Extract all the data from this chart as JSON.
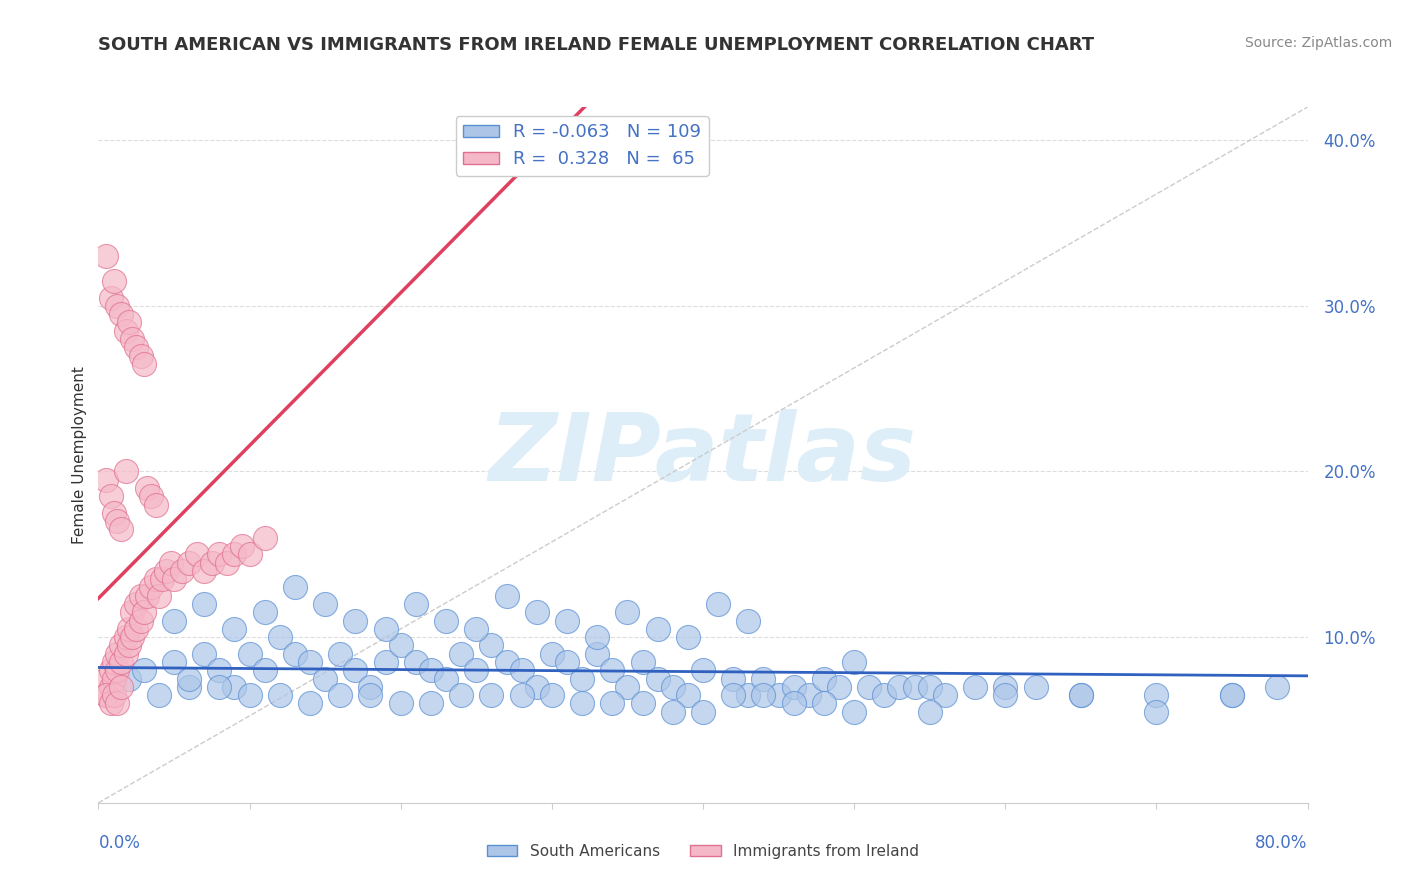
{
  "title": "SOUTH AMERICAN VS IMMIGRANTS FROM IRELAND FEMALE UNEMPLOYMENT CORRELATION CHART",
  "source": "Source: ZipAtlas.com",
  "ylabel": "Female Unemployment",
  "xmin": 0.0,
  "xmax": 0.8,
  "ymin": 0.0,
  "ymax": 0.42,
  "yticks": [
    0.1,
    0.2,
    0.3,
    0.4
  ],
  "ytick_labels": [
    "10.0%",
    "20.0%",
    "30.0%",
    "40.0%"
  ],
  "blue_R": -0.063,
  "blue_N": 109,
  "pink_R": 0.328,
  "pink_N": 65,
  "blue_color": "#adc6e8",
  "pink_color": "#f5b8c8",
  "blue_edge_color": "#5b8fd4",
  "pink_edge_color": "#e07090",
  "blue_line_color": "#3060c0",
  "pink_line_color": "#e04060",
  "diag_color": "#cccccc",
  "background_color": "#ffffff",
  "grid_color": "#dddddd",
  "title_color": "#333333",
  "axis_label_color": "#4472c4",
  "tick_label_color": "#4472c4",
  "source_color": "#888888",
  "watermark": "ZIPatlas",
  "watermark_color": "#ddeef8",
  "blue_scatter_x": [
    0.02,
    0.03,
    0.04,
    0.05,
    0.06,
    0.07,
    0.08,
    0.09,
    0.1,
    0.11,
    0.12,
    0.13,
    0.14,
    0.15,
    0.16,
    0.17,
    0.18,
    0.19,
    0.2,
    0.21,
    0.22,
    0.23,
    0.24,
    0.25,
    0.26,
    0.27,
    0.28,
    0.29,
    0.3,
    0.31,
    0.32,
    0.33,
    0.34,
    0.35,
    0.36,
    0.37,
    0.38,
    0.39,
    0.4,
    0.42,
    0.43,
    0.44,
    0.45,
    0.46,
    0.47,
    0.48,
    0.49,
    0.5,
    0.51,
    0.52,
    0.53,
    0.54,
    0.55,
    0.56,
    0.58,
    0.6,
    0.62,
    0.65,
    0.7,
    0.75,
    0.05,
    0.07,
    0.09,
    0.11,
    0.13,
    0.15,
    0.17,
    0.19,
    0.21,
    0.23,
    0.25,
    0.27,
    0.29,
    0.31,
    0.33,
    0.35,
    0.37,
    0.39,
    0.41,
    0.43,
    0.06,
    0.08,
    0.1,
    0.12,
    0.14,
    0.16,
    0.18,
    0.2,
    0.22,
    0.24,
    0.26,
    0.28,
    0.3,
    0.32,
    0.34,
    0.36,
    0.38,
    0.4,
    0.42,
    0.44,
    0.46,
    0.48,
    0.5,
    0.55,
    0.6,
    0.65,
    0.7,
    0.75,
    0.78
  ],
  "blue_scatter_y": [
    0.075,
    0.08,
    0.065,
    0.085,
    0.07,
    0.09,
    0.08,
    0.07,
    0.09,
    0.08,
    0.1,
    0.09,
    0.085,
    0.075,
    0.09,
    0.08,
    0.07,
    0.085,
    0.095,
    0.085,
    0.08,
    0.075,
    0.09,
    0.08,
    0.095,
    0.085,
    0.08,
    0.07,
    0.09,
    0.085,
    0.075,
    0.09,
    0.08,
    0.07,
    0.085,
    0.075,
    0.07,
    0.065,
    0.08,
    0.075,
    0.065,
    0.075,
    0.065,
    0.07,
    0.065,
    0.075,
    0.07,
    0.085,
    0.07,
    0.065,
    0.07,
    0.07,
    0.07,
    0.065,
    0.07,
    0.07,
    0.07,
    0.065,
    0.065,
    0.065,
    0.11,
    0.12,
    0.105,
    0.115,
    0.13,
    0.12,
    0.11,
    0.105,
    0.12,
    0.11,
    0.105,
    0.125,
    0.115,
    0.11,
    0.1,
    0.115,
    0.105,
    0.1,
    0.12,
    0.11,
    0.075,
    0.07,
    0.065,
    0.065,
    0.06,
    0.065,
    0.065,
    0.06,
    0.06,
    0.065,
    0.065,
    0.065,
    0.065,
    0.06,
    0.06,
    0.06,
    0.055,
    0.055,
    0.065,
    0.065,
    0.06,
    0.06,
    0.055,
    0.055,
    0.065,
    0.065,
    0.055,
    0.065,
    0.07
  ],
  "pink_scatter_x": [
    0.005,
    0.005,
    0.008,
    0.008,
    0.01,
    0.01,
    0.012,
    0.012,
    0.015,
    0.015,
    0.018,
    0.018,
    0.02,
    0.02,
    0.022,
    0.022,
    0.025,
    0.025,
    0.028,
    0.028,
    0.03,
    0.032,
    0.035,
    0.038,
    0.04,
    0.042,
    0.045,
    0.048,
    0.05,
    0.055,
    0.06,
    0.065,
    0.07,
    0.075,
    0.08,
    0.085,
    0.09,
    0.095,
    0.1,
    0.11,
    0.005,
    0.008,
    0.01,
    0.012,
    0.015,
    0.018,
    0.02,
    0.022,
    0.025,
    0.028,
    0.03,
    0.032,
    0.035,
    0.038,
    0.005,
    0.008,
    0.01,
    0.012,
    0.015,
    0.018,
    0.005,
    0.008,
    0.01,
    0.012,
    0.015
  ],
  "pink_scatter_y": [
    0.075,
    0.065,
    0.07,
    0.08,
    0.075,
    0.085,
    0.08,
    0.09,
    0.085,
    0.095,
    0.09,
    0.1,
    0.095,
    0.105,
    0.1,
    0.115,
    0.105,
    0.12,
    0.11,
    0.125,
    0.115,
    0.125,
    0.13,
    0.135,
    0.125,
    0.135,
    0.14,
    0.145,
    0.135,
    0.14,
    0.145,
    0.15,
    0.14,
    0.145,
    0.15,
    0.145,
    0.15,
    0.155,
    0.15,
    0.16,
    0.33,
    0.305,
    0.315,
    0.3,
    0.295,
    0.285,
    0.29,
    0.28,
    0.275,
    0.27,
    0.265,
    0.19,
    0.185,
    0.18,
    0.195,
    0.185,
    0.175,
    0.17,
    0.165,
    0.2,
    0.065,
    0.06,
    0.065,
    0.06,
    0.07
  ]
}
